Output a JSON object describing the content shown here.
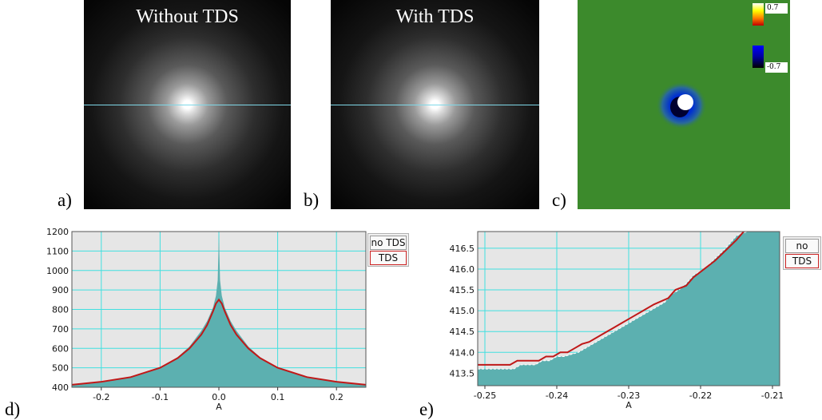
{
  "panels": {
    "a": {
      "label": "a)",
      "title": "Without TDS"
    },
    "b": {
      "label": "b)",
      "title": "With TDS"
    },
    "c": {
      "label": "c)",
      "colorbar": {
        "max_label": "0.7",
        "min_label": "-0.7"
      }
    },
    "d": {
      "label": "d)"
    },
    "e": {
      "label": "e)"
    }
  },
  "colors": {
    "fill": "#5cb0b0",
    "tds_line": "#c01818",
    "plot_bg": "#e6e6e6",
    "grid": "#40e0e0",
    "map_green": "#3c8a2c",
    "scan_line": "#7fd8e8"
  },
  "chart_data": [
    {
      "id": "d",
      "type": "area",
      "xlabel": "A",
      "ylabel": "",
      "xlim": [
        -0.25,
        0.25
      ],
      "ylim": [
        400,
        1200
      ],
      "xticks": [
        -0.2,
        -0.1,
        0.0,
        0.1,
        0.2
      ],
      "xtick_labels": [
        "-0.2",
        "-0.1",
        "0.0",
        "0.1",
        "0.2"
      ],
      "yticks": [
        400,
        500,
        600,
        700,
        800,
        900,
        1000,
        1100,
        1200
      ],
      "ytick_labels": [
        "400",
        "500",
        "600",
        "700",
        "800",
        "900",
        "1000",
        "1100",
        "1200"
      ],
      "grid": true,
      "legend_position": "top-right",
      "series": [
        {
          "name": "no TDS",
          "x": [
            -0.25,
            -0.2,
            -0.15,
            -0.1,
            -0.07,
            -0.05,
            -0.03,
            -0.02,
            -0.01,
            -0.005,
            -0.002,
            0.0,
            0.002,
            0.005,
            0.01,
            0.02,
            0.03,
            0.05,
            0.07,
            0.1,
            0.15,
            0.2,
            0.25
          ],
          "y": [
            410,
            425,
            450,
            500,
            555,
            610,
            690,
            740,
            810,
            870,
            950,
            1190,
            950,
            870,
            810,
            740,
            690,
            610,
            555,
            500,
            450,
            425,
            410
          ]
        },
        {
          "name": "TDS",
          "x": [
            -0.25,
            -0.2,
            -0.15,
            -0.1,
            -0.07,
            -0.05,
            -0.03,
            -0.02,
            -0.01,
            -0.005,
            0.0,
            0.005,
            0.01,
            0.02,
            0.03,
            0.05,
            0.07,
            0.1,
            0.15,
            0.2,
            0.25
          ],
          "y": [
            413,
            428,
            452,
            500,
            550,
            600,
            670,
            720,
            790,
            830,
            850,
            830,
            790,
            720,
            670,
            600,
            550,
            500,
            452,
            428,
            413
          ]
        }
      ]
    },
    {
      "id": "e",
      "type": "area",
      "xlabel": "A",
      "ylabel": "",
      "xlim": [
        -0.251,
        -0.209
      ],
      "ylim": [
        413.2,
        416.9
      ],
      "xticks": [
        -0.25,
        -0.24,
        -0.23,
        -0.22,
        -0.21
      ],
      "xtick_labels": [
        "-0.25",
        "-0.24",
        "-0.23",
        "-0.22",
        "-0.21"
      ],
      "yticks": [
        413.5,
        414.0,
        414.5,
        415.0,
        415.5,
        416.0,
        416.5
      ],
      "ytick_labels": [
        "413.5",
        "414.0",
        "414.5",
        "415.0",
        "415.5",
        "416.0",
        "416.5"
      ],
      "grid": true,
      "legend_position": "top-right",
      "series": [
        {
          "name": "no TDS",
          "x": [
            -0.251,
            -0.246,
            -0.245,
            -0.243,
            -0.242,
            -0.241,
            -0.24,
            -0.239,
            -0.237,
            -0.236,
            -0.235,
            -0.234,
            -0.2325,
            -0.231,
            -0.2295,
            -0.228,
            -0.2265,
            -0.225,
            -0.224,
            -0.223,
            -0.222,
            -0.221,
            -0.2195,
            -0.218,
            -0.2165,
            -0.215,
            -0.2135,
            -0.209
          ],
          "y": [
            413.6,
            413.6,
            413.7,
            413.7,
            413.8,
            413.8,
            413.9,
            413.9,
            414.0,
            414.1,
            414.2,
            414.3,
            414.45,
            414.6,
            414.75,
            414.9,
            415.05,
            415.2,
            415.4,
            415.5,
            415.65,
            415.85,
            416.0,
            416.25,
            416.5,
            416.8,
            416.9,
            416.9
          ]
        },
        {
          "name": "TDS",
          "x": [
            -0.251,
            -0.2465,
            -0.2455,
            -0.2425,
            -0.2415,
            -0.2405,
            -0.2395,
            -0.2385,
            -0.2375,
            -0.2365,
            -0.2355,
            -0.234,
            -0.2325,
            -0.231,
            -0.2295,
            -0.228,
            -0.2265,
            -0.2245,
            -0.2235,
            -0.222,
            -0.221,
            -0.2195,
            -0.218,
            -0.2165,
            -0.215,
            -0.214
          ],
          "y": [
            413.7,
            413.7,
            413.8,
            413.8,
            413.9,
            413.9,
            414.0,
            414.0,
            414.1,
            414.2,
            414.25,
            414.4,
            414.55,
            414.7,
            414.85,
            415.0,
            415.15,
            415.3,
            415.5,
            415.6,
            415.8,
            416.0,
            416.2,
            416.45,
            416.7,
            416.9
          ]
        }
      ]
    }
  ]
}
